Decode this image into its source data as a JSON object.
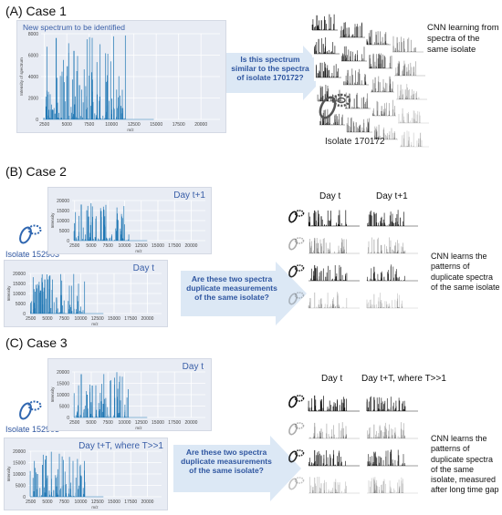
{
  "case1": {
    "title": "(A) Case 1",
    "plot_title": "New spectrum to be identified",
    "y_axis_label": "Intensity of spectrum",
    "x_axis_label": "m/z",
    "y_ticks": [
      "8000",
      "6000",
      "4000",
      "2000",
      "0"
    ],
    "x_ticks": [
      "2500",
      "5000",
      "7500",
      "10000",
      "12500",
      "15000",
      "17500",
      "20000"
    ],
    "question": "Is this spectrum similar to the spectra of isolate 170172?",
    "cnn_text": "CNN learning from spectra of the same isolate",
    "isolate_label": "Isolate 170172"
  },
  "case2": {
    "title": "(B) Case 2",
    "plot_top_label": "Day t+1",
    "plot_bottom_label": "Day t",
    "isolate_label": "Isolate 152903",
    "question": "Are these two spectra duplicate measurements of the same isolate?",
    "col_left": "Day t",
    "col_right": "Day t+1",
    "cnn_text": "CNN learns the patterns of duplicate spectra of the same isolate"
  },
  "case3": {
    "title": "(C) Case 3",
    "plot_top_label": "Day t",
    "plot_bottom_label": "Day t+T, where T>>1",
    "isolate_label": "Isolate 152903",
    "question": "Are these two spectra duplicate measurements of the same isolate?",
    "col_left": "Day t",
    "col_right": "Day t+T, where T>>1",
    "cnn_text": "CNN learns the patterns of duplicate spectra of the same isolate, measured after long time gap"
  },
  "colors": {
    "spectrum": "#1f77b4",
    "plot_bg": "#e8ecf4",
    "arrow": "#dce8f5",
    "accent_text": "#2f56a0"
  }
}
